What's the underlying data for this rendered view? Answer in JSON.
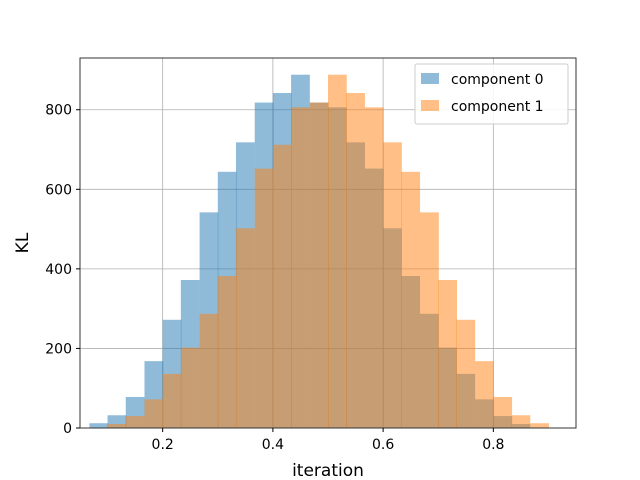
{
  "chart_data": {
    "type": "bar",
    "xlabel": "iteration",
    "ylabel": "KL",
    "xlim": [
      0.05,
      0.95
    ],
    "ylim": [
      0,
      930
    ],
    "xticks": [
      0.2,
      0.4,
      0.6,
      0.8
    ],
    "xtick_labels": [
      "0.2",
      "0.4",
      "0.6",
      "0.8"
    ],
    "yticks": [
      0,
      200,
      400,
      600,
      800
    ],
    "ytick_labels": [
      "0",
      "200",
      "400",
      "600",
      "800"
    ],
    "grid": true,
    "legend_position": "top-right",
    "bin_width": 0.0333,
    "series": [
      {
        "name": "component 0",
        "color": "#1f77b4",
        "alpha": 0.5,
        "bin_starts": [
          0.067,
          0.1,
          0.133,
          0.167,
          0.2,
          0.233,
          0.267,
          0.3,
          0.333,
          0.367,
          0.4,
          0.433,
          0.467,
          0.5,
          0.533,
          0.567,
          0.6,
          0.633,
          0.667,
          0.7,
          0.733,
          0.767,
          0.8,
          0.833
        ],
        "values": [
          12,
          32,
          78,
          168,
          272,
          372,
          542,
          644,
          718,
          818,
          842,
          888,
          818,
          806,
          718,
          652,
          502,
          382,
          287,
          202,
          136,
          72,
          30,
          10
        ]
      },
      {
        "name": "component 1",
        "color": "#ff7f0e",
        "alpha": 0.5,
        "bin_starts": [
          0.1,
          0.133,
          0.167,
          0.2,
          0.233,
          0.267,
          0.3,
          0.333,
          0.367,
          0.4,
          0.433,
          0.467,
          0.5,
          0.533,
          0.567,
          0.6,
          0.633,
          0.667,
          0.7,
          0.733,
          0.767,
          0.8,
          0.833,
          0.867,
          0.9
        ],
        "values": [
          10,
          30,
          72,
          136,
          202,
          287,
          382,
          502,
          652,
          712,
          806,
          818,
          888,
          842,
          806,
          718,
          644,
          542,
          372,
          272,
          168,
          78,
          32,
          12,
          0
        ]
      }
    ]
  }
}
